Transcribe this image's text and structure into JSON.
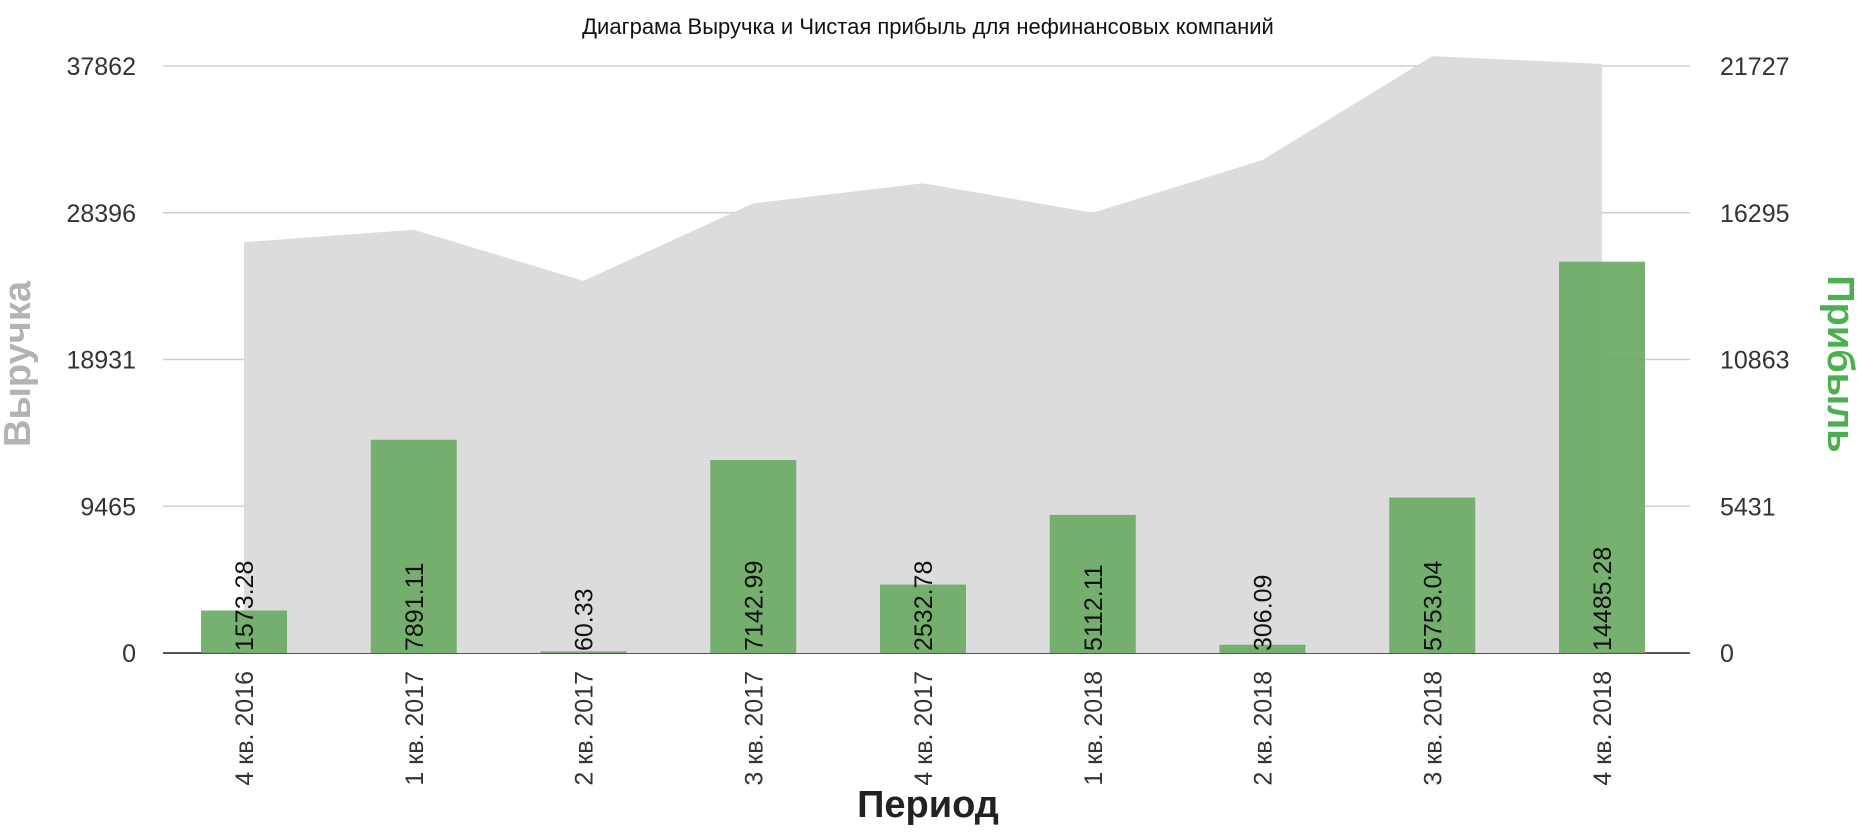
{
  "chart_data": {
    "type": "bar",
    "title": "Диаграма Выручка и Чистая прибыль для нефинансовых компаний",
    "xlabel": "Период",
    "ylabel_left": "Выручка",
    "ylabel_right": "Прибыль",
    "categories": [
      "4 кв. 2016",
      "1 кв. 2017",
      "2 кв. 2017",
      "3 кв. 2017",
      "4 кв. 2017",
      "1 кв. 2018",
      "2 кв. 2018",
      "3 кв. 2018",
      "4 кв. 2018"
    ],
    "series": [
      {
        "name": "Выручка",
        "kind": "area",
        "axis": "left",
        "color": "#dcdcdc",
        "values": [
          26500,
          27300,
          24000,
          29000,
          30300,
          28400,
          31800,
          38500,
          38000
        ]
      },
      {
        "name": "Прибыль",
        "kind": "bar",
        "axis": "right",
        "color": "#6aaa64",
        "values": [
          1573.28,
          7891.11,
          60.33,
          7142.99,
          2532.78,
          5112.11,
          306.09,
          5753.04,
          14485.28
        ],
        "labels": [
          "1573.28",
          "7891.11",
          "60.33",
          "7142.99",
          "2532.78",
          "5112.11",
          "306.09",
          "5753.04",
          "14485.28"
        ]
      }
    ],
    "y_left": {
      "ticks": [
        "0",
        "9465",
        "18931",
        "28396",
        "37862"
      ],
      "ylim": [
        0,
        37862
      ]
    },
    "y_right": {
      "ticks": [
        "0",
        "5431",
        "10863",
        "16295",
        "21727"
      ],
      "ylim": [
        0,
        21727
      ]
    },
    "grid": true,
    "legend": "none"
  }
}
